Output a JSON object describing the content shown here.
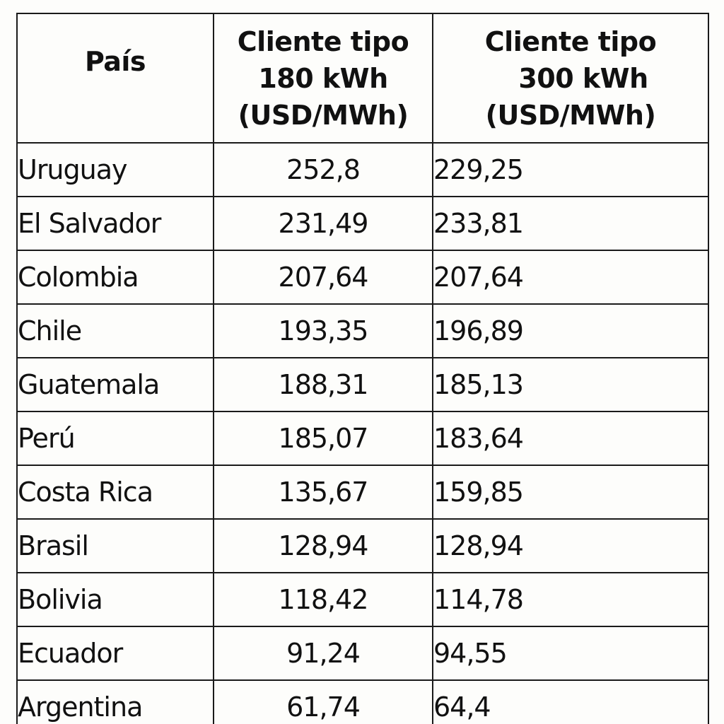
{
  "table": {
    "headers": {
      "country": "País",
      "col180": [
        "Cliente tipo",
        "180 kWh",
        "(USD/MWh)"
      ],
      "col300": [
        "Cliente tipo",
        "300 kWh",
        "(USD/MWh)"
      ]
    },
    "rows": [
      {
        "country": "Uruguay",
        "v180": "252,8",
        "v300": "229,25"
      },
      {
        "country": "El Salvador",
        "v180": "231,49",
        "v300": "233,81"
      },
      {
        "country": "Colombia",
        "v180": "207,64",
        "v300": "207,64"
      },
      {
        "country": "Chile",
        "v180": "193,35",
        "v300": "196,89"
      },
      {
        "country": "Guatemala",
        "v180": "188,31",
        "v300": "185,13"
      },
      {
        "country": "Perú",
        "v180": "185,07",
        "v300": "183,64"
      },
      {
        "country": "Costa Rica",
        "v180": "135,67",
        "v300": "159,85"
      },
      {
        "country": "Brasil",
        "v180": "128,94",
        "v300": "128,94"
      },
      {
        "country": "Bolivia",
        "v180": "118,42",
        "v300": "114,78"
      },
      {
        "country": "Ecuador",
        "v180": "91,24",
        "v300": "94,55"
      },
      {
        "country": "Argentina",
        "v180": "61,74",
        "v300": "64,4"
      }
    ]
  }
}
